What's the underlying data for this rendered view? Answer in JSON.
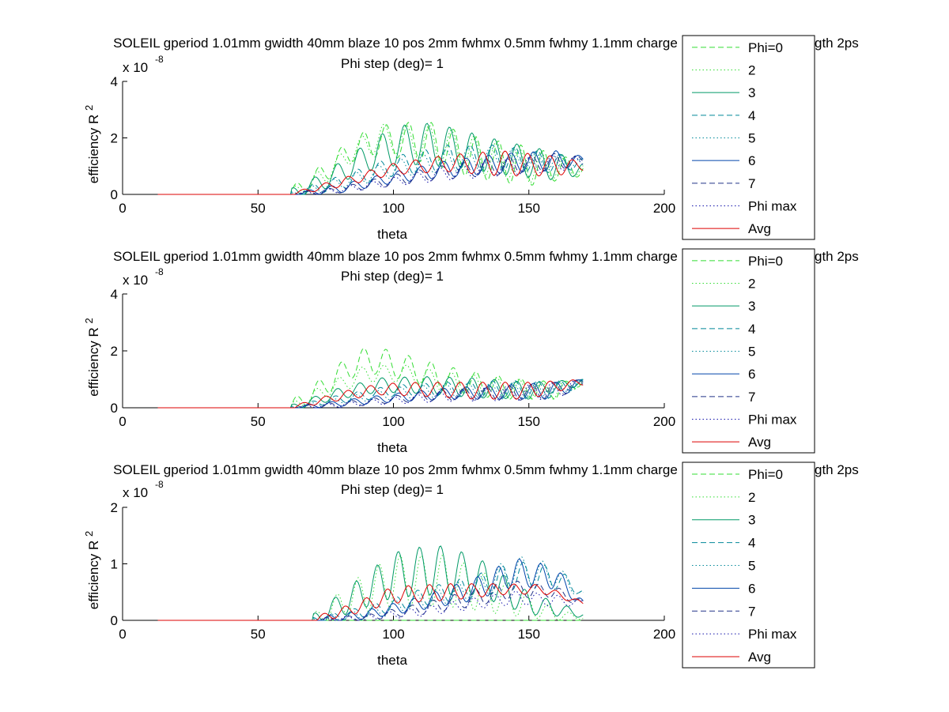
{
  "figure": {
    "legend_entries": [
      "Phi=0",
      "2",
      "3",
      "4",
      "5",
      "6",
      "7",
      "Phi max",
      "Avg"
    ],
    "colors": {
      "Phi=0": "#33dd33",
      "2": "#33dd33",
      "3": "#009966",
      "4": "#008899",
      "5": "#008899",
      "6": "#0044aa",
      "7": "#223388",
      "Phi max": "#1111aa",
      "Avg": "#dd0000"
    },
    "styles": {
      "Phi=0": "dashed",
      "2": "dotted",
      "3": "solid",
      "4": "dashed",
      "5": "dotted",
      "6": "solid",
      "7": "dashed",
      "Phi max": "dotted",
      "Avg": "solid"
    }
  },
  "chart_data": [
    {
      "type": "line",
      "title": "SOLEIL gperiod 1.01mm gwidth 40mm blaze 10 pos 2mm fwhmx 0.5mm fwhmy 1.1mm charge",
      "title_suffix": "gth 2ps",
      "subtitle": "Phi step (deg)= 1",
      "xlabel": "theta",
      "ylabel": "efficiency R",
      "ylabel_sup": "2",
      "exponent_base": "x 10",
      "exponent_power": "-8",
      "xlim": [
        0,
        200
      ],
      "ylim": [
        0,
        4
      ],
      "xticks": [
        "0",
        "50",
        "100",
        "150",
        "200"
      ],
      "yticks": [
        "0",
        "2",
        "4"
      ],
      "theta_range": [
        13,
        170
      ],
      "onset": 62,
      "osc_period": 8.3,
      "legend_location": "outside-right",
      "series": [
        {
          "name": "Phi=0",
          "env_x": [
            62,
            75,
            85,
            95,
            105,
            115,
            130,
            150,
            170
          ],
          "env_y": [
            0,
            0.8,
            1.6,
            1.9,
            1.9,
            1.8,
            1.3,
            1.0,
            0.9
          ],
          "amp": [
            0.25,
            0.35,
            0.45,
            0.55,
            0.65,
            0.75,
            0.75,
            0.7,
            0.25
          ]
        },
        {
          "name": "2",
          "env_x": [
            62,
            75,
            85,
            95,
            105,
            115,
            130,
            150,
            170
          ],
          "env_y": [
            0,
            0.7,
            1.5,
            2.0,
            1.9,
            1.8,
            1.4,
            1.0,
            0.9
          ],
          "amp": [
            0.2,
            0.3,
            0.35,
            0.5,
            0.55,
            0.65,
            0.65,
            0.6,
            0.2
          ]
        },
        {
          "name": "3",
          "env_x": [
            62,
            75,
            90,
            100,
            110,
            120,
            140,
            160,
            170
          ],
          "env_y": [
            0,
            0.5,
            1.3,
            1.7,
            1.8,
            1.7,
            1.3,
            1.0,
            0.9
          ],
          "amp": [
            0.2,
            0.3,
            0.5,
            0.7,
            0.75,
            0.7,
            0.6,
            0.5,
            0.2
          ]
        },
        {
          "name": "4",
          "env_x": [
            62,
            80,
            100,
            120,
            140,
            160,
            170
          ],
          "env_y": [
            0,
            0.4,
            1.0,
            1.3,
            1.3,
            1.1,
            1.1
          ],
          "amp": [
            0.1,
            0.25,
            0.35,
            0.45,
            0.45,
            0.35,
            0.15
          ]
        },
        {
          "name": "5",
          "env_x": [
            62,
            80,
            100,
            120,
            140,
            160,
            170
          ],
          "env_y": [
            0,
            0.4,
            0.9,
            1.2,
            1.3,
            1.1,
            1.1
          ],
          "amp": [
            0.1,
            0.2,
            0.3,
            0.4,
            0.4,
            0.3,
            0.15
          ]
        },
        {
          "name": "6",
          "env_x": [
            62,
            80,
            100,
            120,
            140,
            160,
            170
          ],
          "env_y": [
            0,
            0.2,
            0.6,
            0.9,
            1.1,
            1.2,
            1.2
          ],
          "amp": [
            0.05,
            0.15,
            0.2,
            0.3,
            0.35,
            0.35,
            0.15
          ]
        },
        {
          "name": "7",
          "env_x": [
            62,
            80,
            100,
            120,
            140,
            160,
            170
          ],
          "env_y": [
            0,
            0.15,
            0.5,
            0.8,
            1.0,
            1.15,
            1.2
          ],
          "amp": [
            0.05,
            0.1,
            0.2,
            0.25,
            0.3,
            0.3,
            0.15
          ]
        },
        {
          "name": "Phi max",
          "env_x": [
            62,
            80,
            100,
            120,
            140,
            160,
            170
          ],
          "env_y": [
            0,
            0.15,
            0.45,
            0.75,
            0.95,
            1.1,
            1.15
          ],
          "amp": [
            0.05,
            0.1,
            0.15,
            0.25,
            0.3,
            0.3,
            0.15
          ]
        },
        {
          "name": "Avg",
          "env_x": [
            62,
            80,
            100,
            120,
            140,
            160,
            170
          ],
          "env_y": [
            0,
            0.4,
            0.9,
            1.1,
            1.1,
            1.0,
            1.0
          ],
          "amp": [
            0.05,
            0.15,
            0.2,
            0.3,
            0.45,
            0.35,
            0.15
          ]
        }
      ]
    },
    {
      "type": "line",
      "title": "SOLEIL gperiod 1.01mm gwidth 40mm blaze 10 pos 2mm fwhmx 0.5mm fwhmy 1.1mm charge",
      "title_suffix": "gth 2ps",
      "subtitle": "Phi step (deg)= 1",
      "xlabel": "theta",
      "ylabel": "efficiency R",
      "ylabel_sup": "2",
      "exponent_base": "x 10",
      "exponent_power": "-8",
      "xlim": [
        0,
        200
      ],
      "ylim": [
        0,
        4
      ],
      "xticks": [
        "0",
        "50",
        "100",
        "150",
        "200"
      ],
      "yticks": [
        "0",
        "2",
        "4"
      ],
      "theta_range": [
        13,
        170
      ],
      "onset": 62,
      "osc_period": 8.3,
      "legend_location": "outside-right",
      "series": [
        {
          "name": "Phi=0",
          "env_x": [
            62,
            75,
            85,
            92,
            105,
            120,
            140,
            160,
            170
          ],
          "env_y": [
            0,
            0.8,
            1.5,
            1.7,
            1.4,
            1.0,
            0.7,
            0.6,
            0.9
          ],
          "amp": [
            0.25,
            0.35,
            0.45,
            0.5,
            0.45,
            0.45,
            0.4,
            0.3,
            0.1
          ]
        },
        {
          "name": "2",
          "env_x": [
            62,
            75,
            90,
            105,
            120,
            140,
            160,
            170
          ],
          "env_y": [
            0,
            0.6,
            1.2,
            1.2,
            0.9,
            0.7,
            0.6,
            0.9
          ],
          "amp": [
            0.15,
            0.25,
            0.3,
            0.3,
            0.35,
            0.35,
            0.3,
            0.1
          ]
        },
        {
          "name": "3",
          "env_x": [
            62,
            80,
            95,
            110,
            130,
            150,
            170
          ],
          "env_y": [
            0,
            0.5,
            0.8,
            0.8,
            0.7,
            0.6,
            0.9
          ],
          "amp": [
            0.1,
            0.2,
            0.25,
            0.3,
            0.35,
            0.3,
            0.1
          ]
        },
        {
          "name": "4",
          "env_x": [
            62,
            80,
            100,
            120,
            140,
            160,
            170
          ],
          "env_y": [
            0,
            0.3,
            0.6,
            0.65,
            0.65,
            0.65,
            0.9
          ],
          "amp": [
            0.05,
            0.15,
            0.2,
            0.25,
            0.3,
            0.3,
            0.1
          ]
        },
        {
          "name": "5",
          "env_x": [
            62,
            80,
            100,
            120,
            140,
            160,
            170
          ],
          "env_y": [
            0,
            0.25,
            0.5,
            0.6,
            0.6,
            0.6,
            0.9
          ],
          "amp": [
            0.05,
            0.1,
            0.2,
            0.25,
            0.3,
            0.3,
            0.1
          ]
        },
        {
          "name": "6",
          "env_x": [
            62,
            80,
            100,
            120,
            140,
            160,
            170
          ],
          "env_y": [
            0,
            0.15,
            0.35,
            0.5,
            0.55,
            0.6,
            0.9
          ],
          "amp": [
            0.05,
            0.1,
            0.15,
            0.2,
            0.25,
            0.3,
            0.1
          ]
        },
        {
          "name": "7",
          "env_x": [
            62,
            80,
            100,
            120,
            140,
            160,
            170
          ],
          "env_y": [
            0,
            0.1,
            0.3,
            0.45,
            0.5,
            0.6,
            0.9
          ],
          "amp": [
            0.05,
            0.1,
            0.12,
            0.2,
            0.25,
            0.3,
            0.1
          ]
        },
        {
          "name": "Phi max",
          "env_x": [
            62,
            80,
            100,
            120,
            140,
            160,
            170
          ],
          "env_y": [
            0,
            0.1,
            0.25,
            0.4,
            0.5,
            0.6,
            0.9
          ],
          "amp": [
            0.05,
            0.08,
            0.12,
            0.18,
            0.25,
            0.3,
            0.1
          ]
        },
        {
          "name": "Avg",
          "env_x": [
            62,
            80,
            95,
            110,
            130,
            150,
            170
          ],
          "env_y": [
            0,
            0.4,
            0.65,
            0.65,
            0.6,
            0.6,
            0.9
          ],
          "amp": [
            0.05,
            0.15,
            0.2,
            0.25,
            0.3,
            0.3,
            0.1
          ]
        }
      ]
    },
    {
      "type": "line",
      "title": "SOLEIL gperiod 1.01mm gwidth 40mm blaze 10 pos 2mm fwhmx 0.5mm fwhmy 1.1mm charge",
      "title_suffix": "gth 2ps",
      "subtitle": "Phi step (deg)= 1",
      "xlabel": "theta",
      "ylabel": "efficiency R",
      "ylabel_sup": "2",
      "exponent_base": "x 10",
      "exponent_power": "-8",
      "xlim": [
        0,
        200
      ],
      "ylim": [
        0,
        2
      ],
      "xticks": [
        "0",
        "50",
        "100",
        "150",
        "200"
      ],
      "yticks": [
        "0",
        "1",
        "2"
      ],
      "theta_range": [
        13,
        170
      ],
      "onset": 70,
      "osc_period": 7.8,
      "legend_location": "outside-right",
      "series": [
        {
          "name": "Phi=0",
          "env_x": [
            70,
            170
          ],
          "env_y": [
            0,
            0
          ],
          "amp": [
            0,
            0
          ]
        },
        {
          "name": "2",
          "env_x": [
            70,
            85,
            100,
            120,
            140,
            160,
            170
          ],
          "env_y": [
            0,
            0.4,
            0.7,
            0.7,
            0.4,
            0.1,
            0.05
          ],
          "amp": [
            0.1,
            0.3,
            0.45,
            0.45,
            0.3,
            0.1,
            0.03
          ]
        },
        {
          "name": "3",
          "env_x": [
            70,
            85,
            100,
            115,
            130,
            150,
            170
          ],
          "env_y": [
            0,
            0.4,
            0.8,
            0.9,
            0.8,
            0.3,
            0.1
          ],
          "amp": [
            0.1,
            0.25,
            0.4,
            0.45,
            0.35,
            0.2,
            0.05
          ]
        },
        {
          "name": "4",
          "env_x": [
            70,
            90,
            110,
            130,
            145,
            160,
            170
          ],
          "env_y": [
            0,
            0.15,
            0.4,
            0.6,
            0.8,
            0.75,
            0.5
          ],
          "amp": [
            0.05,
            0.1,
            0.15,
            0.2,
            0.25,
            0.2,
            0.05
          ]
        },
        {
          "name": "5",
          "env_x": [
            70,
            90,
            110,
            130,
            145,
            160,
            170
          ],
          "env_y": [
            0,
            0.1,
            0.35,
            0.55,
            0.9,
            0.8,
            0.45
          ],
          "amp": [
            0.05,
            0.1,
            0.15,
            0.2,
            0.25,
            0.2,
            0.05
          ]
        },
        {
          "name": "6",
          "env_x": [
            70,
            90,
            110,
            130,
            145,
            160,
            170
          ],
          "env_y": [
            0,
            0.1,
            0.3,
            0.55,
            0.85,
            0.75,
            0.3
          ],
          "amp": [
            0.05,
            0.08,
            0.12,
            0.2,
            0.25,
            0.2,
            0.05
          ]
        },
        {
          "name": "7",
          "env_x": [
            70,
            90,
            110,
            130,
            145,
            160,
            170
          ],
          "env_y": [
            0,
            0.05,
            0.2,
            0.4,
            0.55,
            0.5,
            0.3
          ],
          "amp": [
            0.03,
            0.05,
            0.1,
            0.15,
            0.15,
            0.1,
            0.05
          ]
        },
        {
          "name": "Phi max",
          "env_x": [
            70,
            90,
            110,
            130,
            145,
            160,
            170
          ],
          "env_y": [
            0,
            0.05,
            0.15,
            0.3,
            0.4,
            0.35,
            0.3
          ],
          "amp": [
            0.03,
            0.05,
            0.08,
            0.1,
            0.12,
            0.1,
            0.05
          ]
        },
        {
          "name": "Avg",
          "env_x": [
            70,
            85,
            100,
            120,
            140,
            155,
            170
          ],
          "env_y": [
            0,
            0.2,
            0.45,
            0.5,
            0.55,
            0.55,
            0.3
          ],
          "amp": [
            0.05,
            0.1,
            0.15,
            0.15,
            0.1,
            0.08,
            0.03
          ]
        }
      ]
    }
  ]
}
